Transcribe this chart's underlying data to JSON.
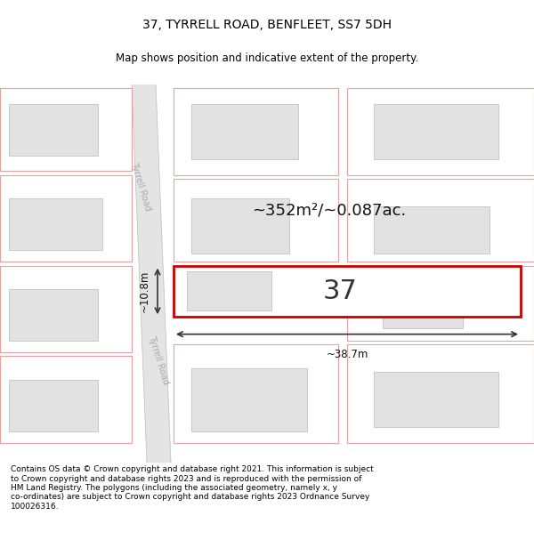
{
  "title": "37, TYRRELL ROAD, BENFLEET, SS7 5DH",
  "subtitle": "Map shows position and indicative extent of the property.",
  "footer": "Contains OS data © Crown copyright and database right 2021. This information is subject\nto Crown copyright and database rights 2023 and is reproduced with the permission of\nHM Land Registry. The polygons (including the associated geometry, namely x, y\nco-ordinates) are subject to Crown copyright and database rights 2023 Ordnance Survey\n100026316.",
  "bg_color": "#ffffff",
  "map_bg": "#f8f8f8",
  "road_fill": "#e4e4e4",
  "road_edge": "#cccccc",
  "building_fill": "#e2e2e2",
  "building_edge": "#c8c8c8",
  "plot_edge": "#e8a0a0",
  "highlight_fill": "#ffffff",
  "highlight_edge": "#cc0000",
  "street_label": "Tyrrell Road",
  "property_number": "37",
  "area_label": "~352m²/~0.087ac.",
  "width_label": "~38.7m",
  "height_label": "~10.8m",
  "title_fontsize": 10,
  "subtitle_fontsize": 8.5,
  "footer_fontsize": 6.5
}
